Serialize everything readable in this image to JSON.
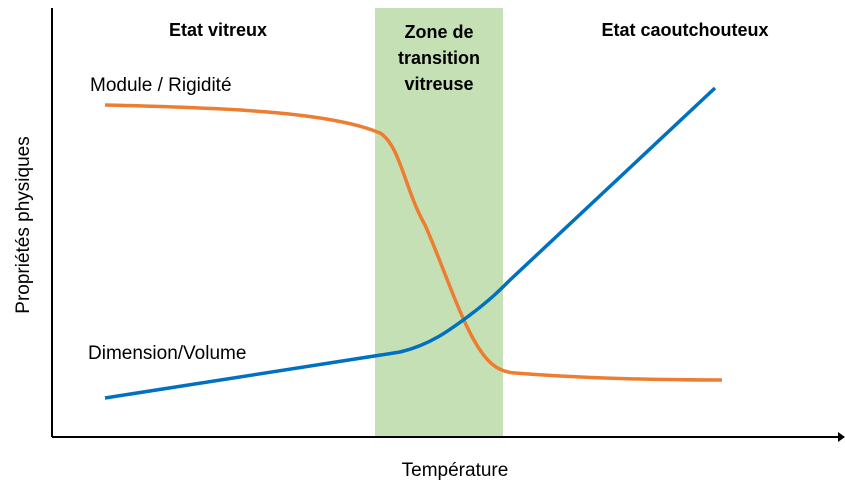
{
  "regions": [
    {
      "label": [
        "Etat vitreux"
      ]
    },
    {
      "label": [
        "Zone de",
        "transition",
        "vitreuse"
      ]
    },
    {
      "label": [
        "Etat caoutchouteux"
      ]
    }
  ],
  "curves": [
    {
      "label": "Module / Rigidité"
    },
    {
      "label": "Dimension/Volume"
    }
  ],
  "axes": {
    "y_label": "Propriétés physiques",
    "x_label": "Température"
  }
}
